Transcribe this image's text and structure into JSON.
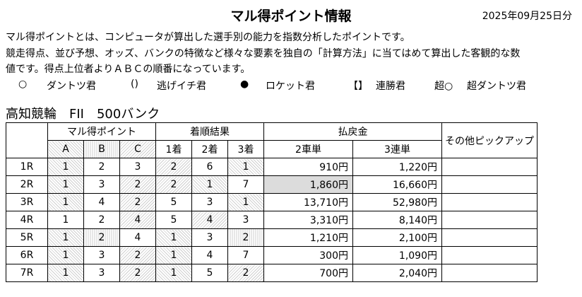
{
  "header": {
    "title": "マル得ポイント情報",
    "date": "2025年09月25日分"
  },
  "description": {
    "line1": "マル得ポイントとは、コンピュータが算出した選手別の能力を指数分析したポイントです。",
    "line2": "競走得点、並び予想、オッズ、バンクの特徴など様々な要素を独自の「計算方法」に当てはめて算出した客観的な数",
    "line3": "値です。得点上位者よりＡＢＣの順番になっています。"
  },
  "legend": [
    {
      "symbol": "○",
      "label": "ダントツ君"
    },
    {
      "symbol": "()",
      "label": "逃げイチ君"
    },
    {
      "symbol": "●",
      "label": "ロケット君"
    },
    {
      "symbol": "【】",
      "label": "連勝君"
    },
    {
      "symbol": "超○",
      "label": "超ダントツ君"
    }
  ],
  "subtitle": "高知競輪　FII　500バンク",
  "table": {
    "group_headers": {
      "points": "マル得ポイント",
      "results": "着順結果",
      "payout": "払戻金",
      "other": "その他ピックアップ"
    },
    "sub_headers": {
      "a": "A",
      "b": "B",
      "c": "C",
      "r1": "1着",
      "r2": "2着",
      "r3": "3着",
      "nishatan": "2車単",
      "santan": "3連単"
    },
    "rows": [
      {
        "race": "1R",
        "a": "1",
        "b": "2",
        "c": "3",
        "r1": "2",
        "r2": "6",
        "r3": "1",
        "nishatan": "910円",
        "santan": "1,220円",
        "other": ""
      },
      {
        "race": "2R",
        "a": "1",
        "b": "3",
        "c": "2",
        "r1": "2",
        "r2": "1",
        "r3": "7",
        "nishatan": "1,860円",
        "santan": "16,660円",
        "other": ""
      },
      {
        "race": "3R",
        "a": "1",
        "b": "4",
        "c": "2",
        "r1": "5",
        "r2": "3",
        "r3": "1",
        "nishatan": "13,710円",
        "santan": "52,980円",
        "other": ""
      },
      {
        "race": "4R",
        "a": "1",
        "b": "2",
        "c": "4",
        "r1": "5",
        "r2": "4",
        "r3": "3",
        "nishatan": "3,310円",
        "santan": "8,140円",
        "other": ""
      },
      {
        "race": "5R",
        "a": "1",
        "b": "2",
        "c": "4",
        "r1": "1",
        "r2": "3",
        "r3": "2",
        "nishatan": "1,210円",
        "santan": "2,100円",
        "other": ""
      },
      {
        "race": "6R",
        "a": "1",
        "b": "3",
        "c": "2",
        "r1": "1",
        "r2": "4",
        "r3": "7",
        "nishatan": "300円",
        "santan": "1,090円",
        "other": ""
      },
      {
        "race": "7R",
        "a": "1",
        "b": "3",
        "c": "2",
        "r1": "1",
        "r2": "5",
        "r3": "2",
        "nishatan": "700円",
        "santan": "2,040円",
        "other": ""
      }
    ],
    "highlight": {
      "a_col": [
        0,
        1,
        2,
        4,
        5,
        6
      ],
      "b_col": [
        4
      ],
      "c_col": [
        1,
        2,
        3,
        5,
        6
      ]
    }
  }
}
